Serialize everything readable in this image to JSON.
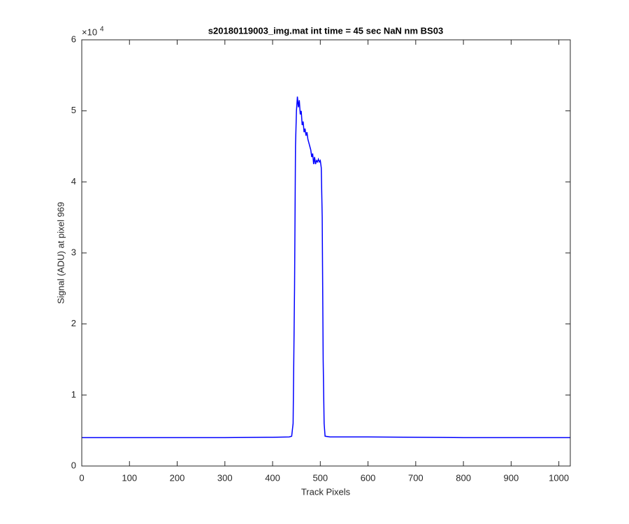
{
  "chart_data": {
    "type": "line",
    "title": "s20180119003_img.mat int time = 45 sec  NaN nm BS03",
    "x_label": "Track Pixels",
    "y_label": "Signal (ADU) at pixel 969",
    "y_exponent_base": "×10",
    "y_exponent": "4",
    "x": [
      0,
      100,
      200,
      300,
      400,
      435,
      440,
      443,
      446,
      448,
      450,
      452,
      454,
      456,
      458,
      460,
      462,
      464,
      466,
      468,
      470,
      472,
      474,
      476,
      478,
      480,
      482,
      484,
      486,
      488,
      490,
      492,
      494,
      496,
      498,
      500,
      502,
      504,
      506,
      508,
      510,
      520,
      600,
      700,
      800,
      900,
      1024
    ],
    "series": [
      {
        "color": "#0000ff",
        "values": [
          0.4,
          0.4,
          0.4,
          0.4,
          0.405,
          0.41,
          0.42,
          0.6,
          2.5,
          4.5,
          5.0,
          5.2,
          5.05,
          5.15,
          4.95,
          5.0,
          4.8,
          4.85,
          4.7,
          4.75,
          4.65,
          4.7,
          4.6,
          4.55,
          4.5,
          4.45,
          4.35,
          4.4,
          4.25,
          4.35,
          4.25,
          4.3,
          4.28,
          4.32,
          4.28,
          4.3,
          4.2,
          3.5,
          1.5,
          0.6,
          0.42,
          0.41,
          0.41,
          0.405,
          0.4,
          0.4,
          0.4
        ]
      }
    ],
    "xlim": [
      0,
      1024
    ],
    "ylim": [
      0,
      6
    ],
    "xticks": [
      0,
      100,
      200,
      300,
      400,
      500,
      600,
      700,
      800,
      900,
      1000
    ],
    "yticks": [
      0,
      1,
      2,
      3,
      4,
      5,
      6
    ],
    "grid": false
  }
}
